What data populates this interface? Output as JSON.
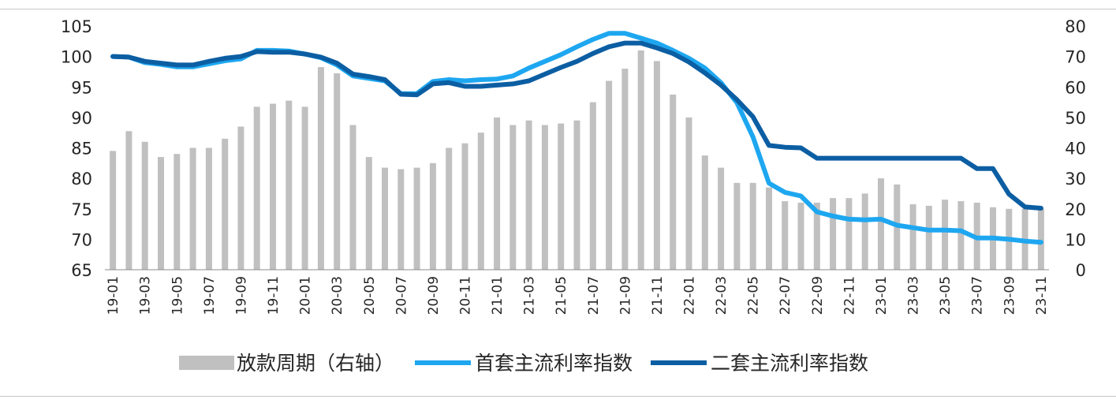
{
  "colors": {
    "bar": "#c0c0c0",
    "first_home": "#1ea7f0",
    "second_home": "#0c5ea3",
    "axis": "#8c8c8c",
    "rule": "#c8c8c8"
  },
  "chart_data": {
    "type": "bar+line",
    "title": "",
    "grid": false,
    "legend_position": "bottom",
    "left_axis": {
      "ylim": [
        65,
        105
      ],
      "ticks": [
        "65",
        "70",
        "75",
        "80",
        "85",
        "90",
        "95",
        "100",
        "105"
      ]
    },
    "right_axis": {
      "ylim": [
        0,
        80
      ],
      "ticks": [
        "0",
        "10",
        "20",
        "30",
        "40",
        "50",
        "60",
        "70",
        "80"
      ]
    },
    "categories": [
      "19-01",
      "19-02",
      "19-03",
      "19-04",
      "19-05",
      "19-06",
      "19-07",
      "19-08",
      "19-09",
      "19-10",
      "19-11",
      "19-12",
      "20-01",
      "20-02",
      "20-03",
      "20-04",
      "20-05",
      "20-06",
      "20-07",
      "20-08",
      "20-09",
      "20-10",
      "20-11",
      "20-12",
      "21-01",
      "21-02",
      "21-03",
      "21-04",
      "21-05",
      "21-06",
      "21-07",
      "21-08",
      "21-09",
      "21-10",
      "21-11",
      "21-12",
      "22-01",
      "22-02",
      "22-03",
      "22-04",
      "22-05",
      "22-06",
      "22-07",
      "22-08",
      "22-09",
      "22-10",
      "22-11",
      "22-12",
      "23-01",
      "23-02",
      "23-03",
      "23-04",
      "23-05",
      "23-06",
      "23-07",
      "23-08",
      "23-09",
      "23-10",
      "23-11"
    ],
    "tick_labels": [
      "19-01",
      "19-03",
      "19-05",
      "19-07",
      "19-09",
      "19-11",
      "20-01",
      "20-03",
      "20-05",
      "20-07",
      "20-09",
      "20-11",
      "21-01",
      "21-03",
      "21-05",
      "21-07",
      "21-09",
      "21-11",
      "22-01",
      "22-03",
      "22-05",
      "22-07",
      "22-09",
      "22-11",
      "23-01",
      "23-03",
      "23-05",
      "23-07",
      "23-09",
      "23-11"
    ],
    "series": [
      {
        "name": "放款周期（右轴）",
        "type": "bar",
        "axis": "right",
        "values": [
          39,
          45.5,
          42,
          37,
          38,
          40,
          40,
          43,
          47,
          53.5,
          54.5,
          55.5,
          53.5,
          66.5,
          64.5,
          47.5,
          37,
          33.5,
          33,
          33.5,
          35,
          40,
          41.5,
          45,
          50,
          47.5,
          49,
          47.5,
          48,
          49,
          55,
          62,
          66,
          72,
          68.5,
          57.5,
          50,
          37.5,
          33.5,
          28.5,
          28.5,
          27,
          22.5,
          22,
          22,
          23.5,
          23.5,
          25,
          30,
          28,
          21.5,
          21,
          23,
          22.5,
          22,
          20.5,
          20,
          20,
          20
        ]
      },
      {
        "name": "首套主流利率指数",
        "type": "line",
        "axis": "left",
        "values": [
          100,
          99.9,
          99.0,
          98.7,
          98.3,
          98.3,
          98.8,
          99.3,
          99.6,
          101.0,
          101.0,
          100.9,
          100.4,
          99.8,
          98.6,
          96.8,
          96.4,
          96.0,
          93.9,
          93.9,
          95.9,
          96.2,
          96.0,
          96.2,
          96.3,
          96.8,
          98.1,
          99.2,
          100.3,
          101.6,
          102.8,
          103.8,
          103.8,
          103.0,
          102.2,
          101.0,
          99.7,
          98.1,
          95.7,
          92.4,
          86.8,
          79.2,
          77.7,
          77.1,
          74.5,
          73.8,
          73.3,
          73.2,
          73.3,
          72.3,
          71.9,
          71.5,
          71.5,
          71.4,
          70.2,
          70.2,
          70.0,
          69.7,
          69.5
        ]
      },
      {
        "name": "二套主流利率指数",
        "type": "line",
        "axis": "left",
        "values": [
          100,
          99.9,
          99.2,
          98.9,
          98.6,
          98.6,
          99.2,
          99.7,
          100.0,
          100.8,
          100.7,
          100.7,
          100.4,
          99.9,
          98.9,
          97.1,
          96.7,
          96.2,
          93.8,
          93.7,
          95.5,
          95.7,
          95.1,
          95.1,
          95.3,
          95.5,
          96.0,
          97.1,
          98.2,
          99.2,
          100.5,
          101.6,
          102.2,
          102.2,
          101.4,
          100.5,
          99.1,
          97.3,
          95.3,
          92.9,
          90.1,
          85.4,
          85.1,
          85.0,
          83.3,
          83.3,
          83.3,
          83.3,
          83.3,
          83.3,
          83.3,
          83.3,
          83.3,
          83.3,
          81.6,
          81.6,
          77.4,
          75.3,
          75.1
        ]
      }
    ]
  }
}
